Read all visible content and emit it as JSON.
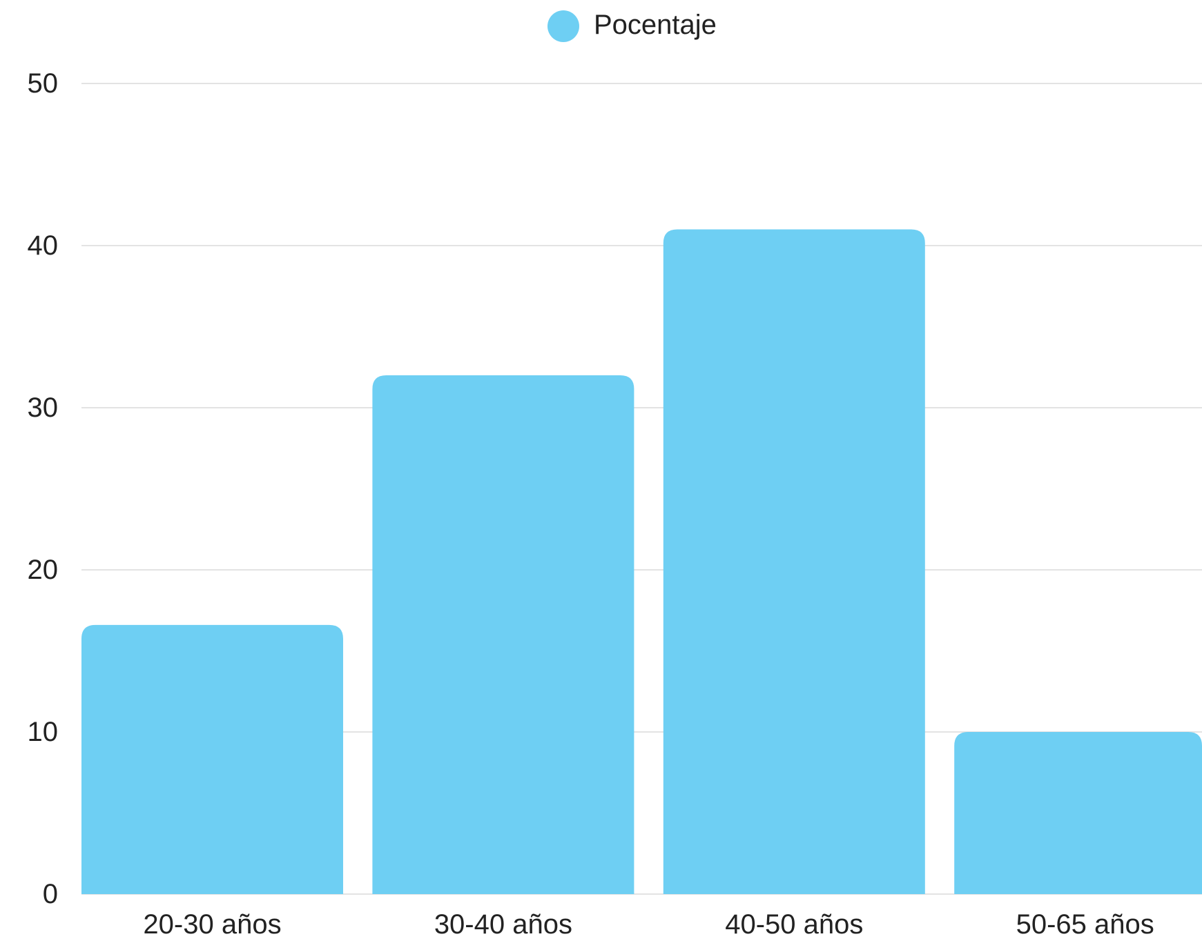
{
  "chart_data": {
    "type": "bar",
    "title": "",
    "xlabel": "",
    "ylabel": "",
    "categories": [
      "20-30 años",
      "30-40 años",
      "40-50 años",
      "50-65 años"
    ],
    "series": [
      {
        "name": "Pocentaje",
        "color": "#6ecff3",
        "values": [
          16.6,
          32,
          41,
          10
        ]
      }
    ],
    "ylim": [
      0,
      50
    ],
    "yticks": [
      "0",
      "10",
      "20",
      "30",
      "40",
      "50"
    ],
    "grid": true,
    "legend_position": "top-center",
    "grid_color": "#e3e3e3"
  }
}
